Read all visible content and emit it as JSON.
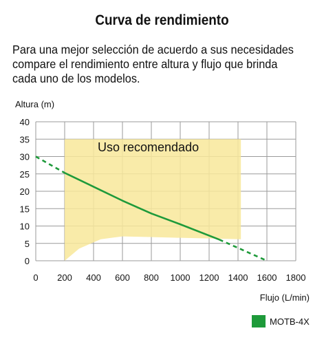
{
  "title": "Curva de rendimiento",
  "description": "Para una mejor selección de acuerdo a sus necesidades compare el rendimiento entre altura y flujo que brinda cada uno de los modelos.",
  "chart_data": {
    "type": "line",
    "ylabel": "Altura (m)",
    "xlabel": "Flujo (L/min)",
    "xlim": [
      0,
      1800
    ],
    "ylim": [
      0,
      40
    ],
    "x_ticks": [
      "0",
      "200",
      "400",
      "600",
      "800",
      "1000",
      "1200",
      "1400",
      "1600",
      "1800"
    ],
    "y_ticks": [
      "0",
      "5",
      "10",
      "15",
      "20",
      "25",
      "30",
      "35",
      "40"
    ],
    "grid": true,
    "legend_placement": "bottom-right",
    "recommended_region": {
      "label": "Uso recomendado",
      "color": "#f8e79a",
      "x_range": [
        200,
        1420
      ],
      "top": 35,
      "bottom": [
        [
          200,
          0
        ],
        [
          300,
          3.5
        ],
        [
          450,
          6.2
        ],
        [
          600,
          7
        ],
        [
          1000,
          6.6
        ],
        [
          1420,
          6.2
        ]
      ]
    },
    "series": [
      {
        "name": "MOTB-4X",
        "color": "#1e9a3a",
        "solid": [
          [
            200,
            25.3
          ],
          [
            400,
            21.3
          ],
          [
            600,
            17.3
          ],
          [
            800,
            13.6
          ],
          [
            1000,
            10.5
          ],
          [
            1270,
            6.1
          ]
        ],
        "dashed_start": [
          [
            0,
            30
          ],
          [
            200,
            25.3
          ]
        ],
        "dashed_end": [
          [
            1270,
            6.1
          ],
          [
            1600,
            0
          ]
        ]
      }
    ]
  }
}
